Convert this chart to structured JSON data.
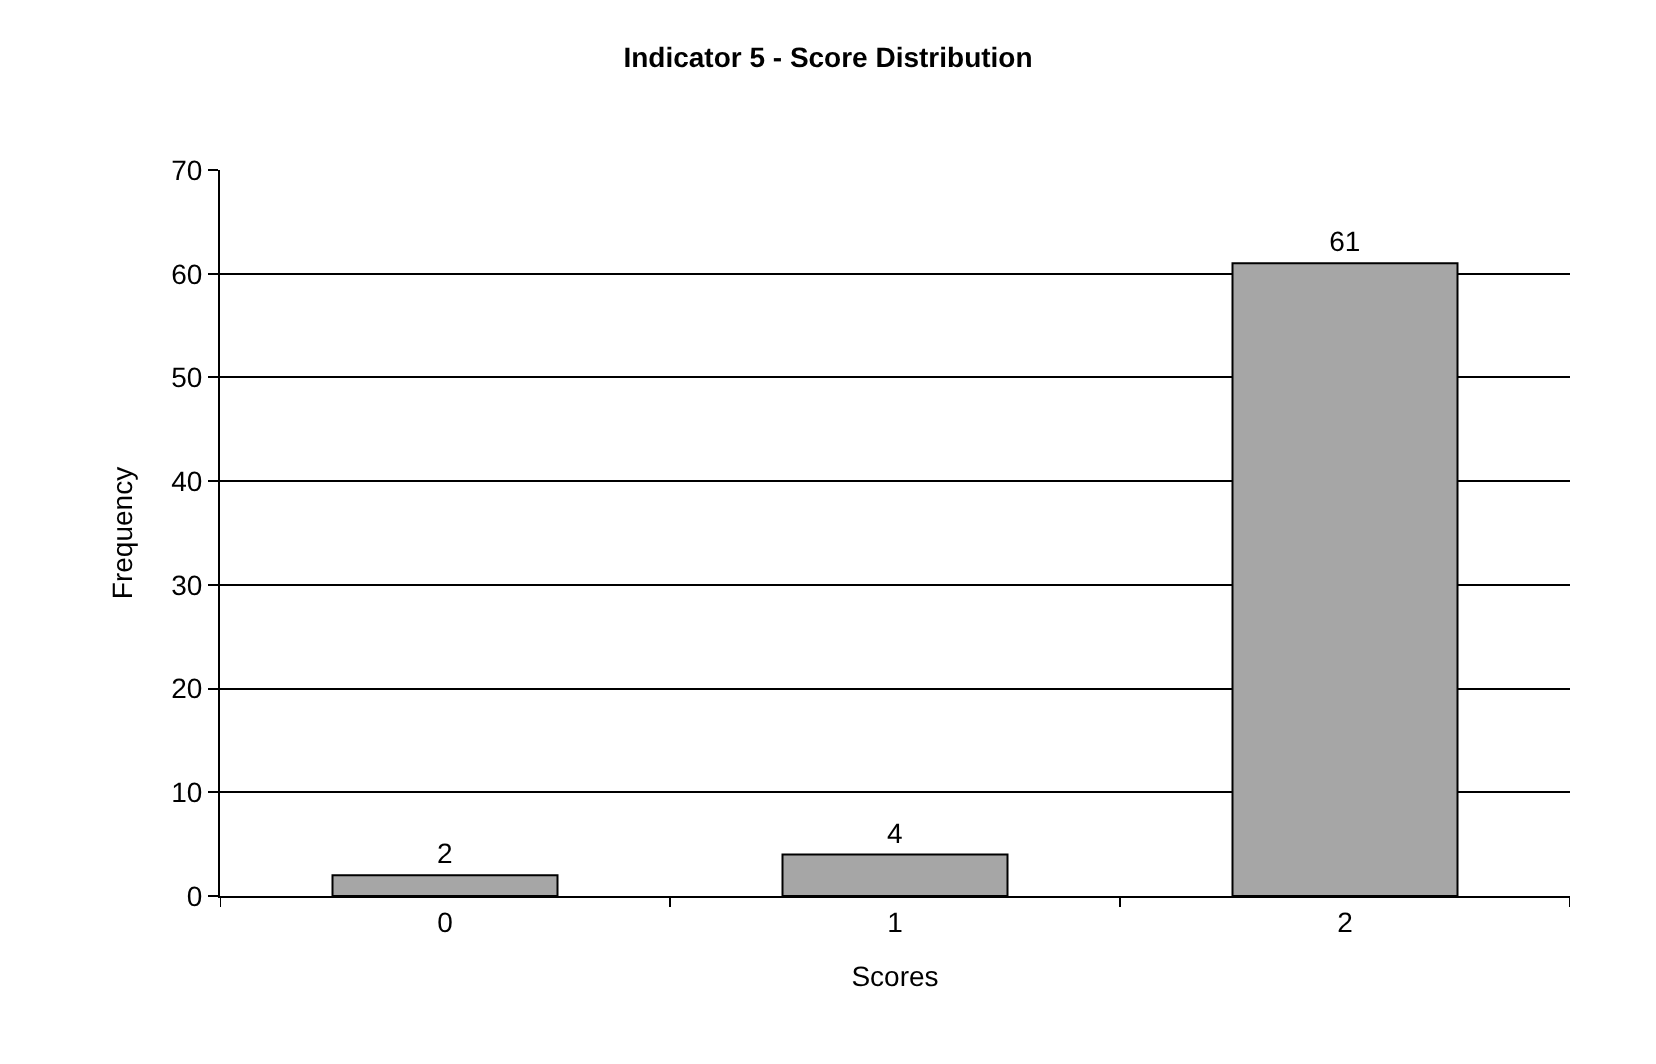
{
  "chart_data": {
    "type": "bar",
    "title": "Indicator 5 - Score Distribution",
    "xlabel": "Scores",
    "ylabel": "Frequency",
    "categories": [
      "0",
      "1",
      "2"
    ],
    "values": [
      2,
      4,
      61
    ],
    "color": "#a6a6a6",
    "ylim": [
      0,
      70
    ],
    "yticks": [
      0,
      10,
      20,
      30,
      40,
      50,
      60,
      70
    ],
    "grid": "y",
    "data_labels": true,
    "legend": false
  }
}
